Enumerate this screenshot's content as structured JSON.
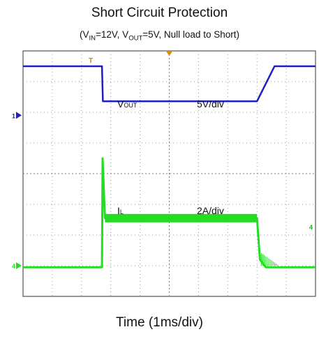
{
  "title": "Short Circuit Protection",
  "subtitle": {
    "p1": "(V",
    "s1": "IN",
    "p2": "=12V, V",
    "s2": "OUT",
    "p3": "=5V, Null load to Short)"
  },
  "xlabel": "Time (1ms/div)",
  "chart_data": {
    "type": "line",
    "title": "Short Circuit Protection",
    "xlabel": "Time (1ms/div)",
    "grid": true,
    "x_divisions": 10,
    "y_divisions": 8,
    "trigger_marker": "T",
    "series": [
      {
        "name": "VOUT",
        "scale": "5V/div",
        "channel_marker": "1",
        "color": "#1f1fbf",
        "x": [
          0,
          2.7,
          2.73,
          8,
          8.6,
          10
        ],
        "y": [
          1.6,
          1.6,
          0.46,
          0.46,
          1.6,
          1.6
        ]
      },
      {
        "name": "IL",
        "scale": "2A/div",
        "channel_marker": "4",
        "color": "#22dd22",
        "x": [
          0,
          2.7,
          2.72,
          2.8,
          8,
          8.1,
          8.3,
          10
        ],
        "y": [
          -0.05,
          -0.05,
          3.5,
          1.55,
          1.55,
          0.2,
          -0.05,
          -0.05
        ]
      }
    ],
    "annotations": [
      {
        "main": "V",
        "sub": "OUT",
        "scale": "5V/div"
      },
      {
        "main": "I",
        "sub": "L",
        "scale": "2A/div"
      }
    ]
  }
}
